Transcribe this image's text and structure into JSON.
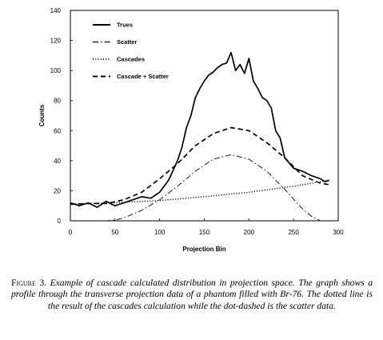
{
  "chart_data": {
    "type": "line",
    "title": "",
    "xlabel": "Projection Bin",
    "ylabel": "Counts",
    "xlim": [
      0,
      300
    ],
    "ylim": [
      0,
      140
    ],
    "x_ticks": [
      0,
      50,
      100,
      150,
      200,
      250,
      300
    ],
    "y_ticks": [
      0,
      20,
      40,
      60,
      80,
      100,
      120,
      140
    ],
    "grid": false,
    "legend_position": "top-left",
    "series": [
      {
        "name": "Trues",
        "style": "solid",
        "x": [
          0,
          10,
          20,
          30,
          40,
          50,
          60,
          70,
          80,
          90,
          100,
          110,
          120,
          125,
          130,
          135,
          140,
          145,
          150,
          155,
          160,
          165,
          170,
          175,
          180,
          185,
          190,
          195,
          200,
          205,
          210,
          215,
          220,
          225,
          230,
          235,
          240,
          250,
          260,
          270,
          280,
          285,
          290
        ],
        "y": [
          12,
          10,
          12,
          9,
          13,
          10,
          12,
          14,
          16,
          15,
          19,
          27,
          40,
          49,
          62,
          70,
          82,
          88,
          93,
          97,
          99,
          102,
          104,
          105,
          112,
          100,
          104,
          98,
          108,
          93,
          88,
          82,
          80,
          75,
          60,
          55,
          42,
          35,
          33,
          30,
          28,
          26,
          27
        ]
      },
      {
        "name": "Scatter",
        "style": "dash-dot",
        "x": [
          0,
          20,
          40,
          50,
          60,
          80,
          100,
          120,
          140,
          160,
          180,
          200,
          220,
          240,
          260,
          270,
          280
        ],
        "y": [
          0,
          0,
          0,
          0.5,
          2,
          7,
          14,
          23,
          33,
          41,
          44,
          41,
          33,
          21,
          8,
          3,
          0
        ]
      },
      {
        "name": "Cascades",
        "style": "dotted",
        "x": [
          0,
          50,
          100,
          150,
          200,
          250,
          290
        ],
        "y": [
          11,
          12,
          13.5,
          16,
          19,
          23,
          27
        ]
      },
      {
        "name": "Cascade + Scatter",
        "style": "dashed",
        "x": [
          0,
          20,
          40,
          60,
          80,
          100,
          120,
          140,
          160,
          180,
          200,
          220,
          240,
          260,
          280,
          290
        ],
        "y": [
          11,
          11.5,
          11.5,
          14,
          19,
          28,
          38,
          50,
          58,
          62,
          60,
          52,
          42,
          30,
          25,
          24
        ]
      }
    ]
  },
  "caption": {
    "label": "Figure 3.",
    "text": "Example of cascade calculated distribution in projection space. The graph shows a profile through the transverse projection data of a phantom filled with Br-76. The dotted line is the result of the cascades calculation while the dot-dashed is the scatter data."
  }
}
